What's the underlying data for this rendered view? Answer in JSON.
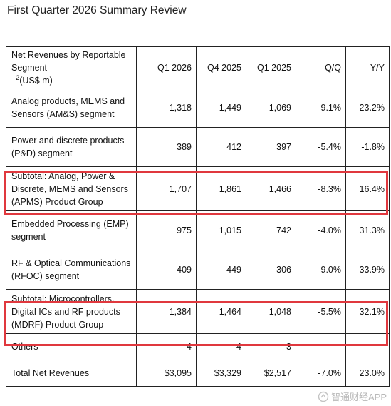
{
  "title": "First Quarter 2026 Summary Review",
  "table": {
    "header_label": "Net Revenues by Reportable Segment",
    "header_sup": "2",
    "header_unit": "(US$ m)",
    "columns": [
      "Q1 2026",
      "Q4 2025",
      "Q1 2025",
      "Q/Q",
      "Y/Y"
    ],
    "rows": [
      {
        "label": "Analog products, MEMS and Sensors (AM&S) segment",
        "values": [
          "1,318",
          "1,449",
          "1,069",
          "-9.1%",
          "23.2%"
        ]
      },
      {
        "label": "Power and discrete products (P&D) segment",
        "values": [
          "389",
          "412",
          "397",
          "-5.4%",
          "-1.8%"
        ]
      },
      {
        "label": "Subtotal: Analog, Power & Discrete, MEMS and Sensors (APMS) Product Group",
        "values": [
          "1,707",
          "1,861",
          "1,466",
          "-8.3%",
          "16.4%"
        ]
      },
      {
        "label": "Embedded Processing (EMP) segment",
        "values": [
          "975",
          "1,015",
          "742",
          "-4.0%",
          "31.3%"
        ]
      },
      {
        "label": "RF & Optical Communications (RFOC) segment",
        "values": [
          "409",
          "449",
          "306",
          "-9.0%",
          "33.9%"
        ]
      },
      {
        "label": "Subtotal: Microcontrollers, Digital ICs and RF products (MDRF) Product Group",
        "values": [
          "1,384",
          "1,464",
          "1,048",
          "-5.5%",
          "32.1%"
        ]
      },
      {
        "label": "Others",
        "values": [
          "4",
          "4",
          "3",
          "-",
          "-"
        ]
      },
      {
        "label": "Total Net Revenues",
        "values": [
          "$3,095",
          "$3,329",
          "$2,517",
          "-7.0%",
          "23.0%"
        ]
      }
    ]
  },
  "highlight_color": "#e0383e",
  "watermark": {
    "text": "智通财经APP",
    "icon": "watermark-logo-icon"
  }
}
